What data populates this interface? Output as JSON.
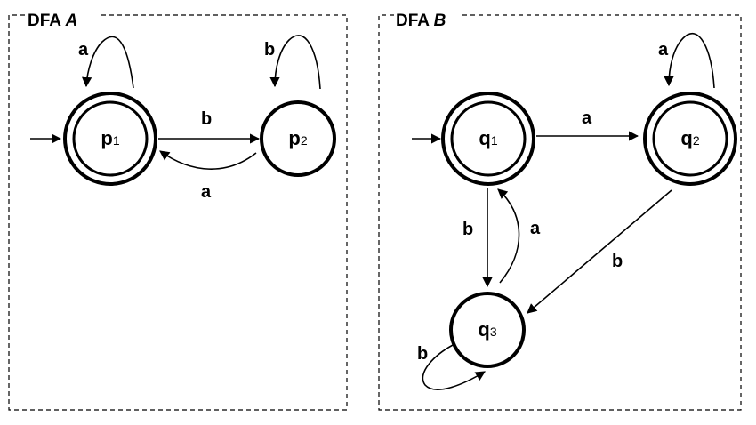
{
  "panels": [
    {
      "title_prefix": "DFA",
      "title_name": "A"
    },
    {
      "title_prefix": "DFA",
      "title_name": "B"
    }
  ],
  "dfa_a": {
    "states": [
      {
        "name": "p",
        "sub": "1",
        "accepting": true,
        "start": true
      },
      {
        "name": "p",
        "sub": "2",
        "accepting": false,
        "start": false
      }
    ],
    "transitions": {
      "p1_p1": "a",
      "p1_p2": "b",
      "p2_p1": "a",
      "p2_p2": "b"
    }
  },
  "dfa_b": {
    "states": [
      {
        "name": "q",
        "sub": "1",
        "accepting": true,
        "start": true
      },
      {
        "name": "q",
        "sub": "2",
        "accepting": true,
        "start": false
      },
      {
        "name": "q",
        "sub": "3",
        "accepting": false,
        "start": false
      }
    ],
    "transitions": {
      "q1_q2": "a",
      "q2_q2": "a",
      "q1_q3": "b",
      "q3_q1": "a",
      "q2_q3": "b",
      "q3_q3": "b"
    }
  }
}
